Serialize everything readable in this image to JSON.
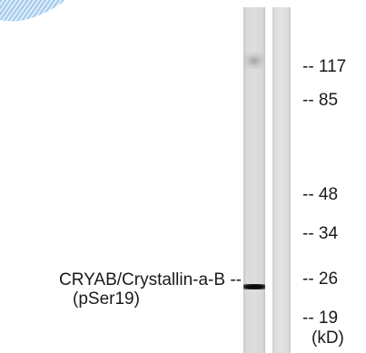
{
  "blot": {
    "markers": [
      "-- 117",
      "-- 85",
      "-- 48",
      "-- 34",
      "-- 26",
      "-- 19"
    ],
    "unit": "(kD)",
    "target_label": "CRYAB/Crystallin-a-B --",
    "target_sublabel": "(pSer19)"
  },
  "colors": {
    "watermark": "#7fb4e6",
    "band": "#0a0a0a",
    "lane": "#dcdcdc"
  }
}
